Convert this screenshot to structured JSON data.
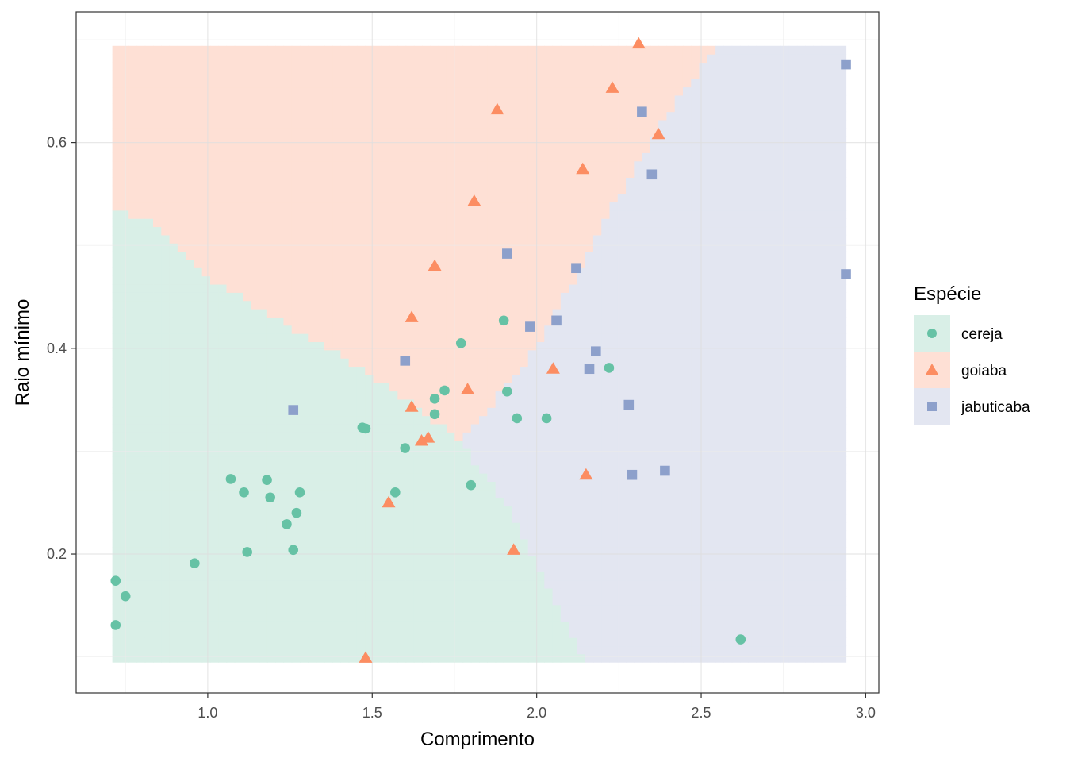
{
  "chart_data": {
    "type": "scatter",
    "xlabel": "Comprimento",
    "ylabel": "Raio mínimo",
    "xlim": [
      0.6,
      3.04
    ],
    "ylim": [
      0.065,
      0.727
    ],
    "x_ticks": [
      1.0,
      1.5,
      2.0,
      2.5,
      3.0
    ],
    "x_tick_labels": [
      "1.0",
      "1.5",
      "2.0",
      "2.5",
      "3.0"
    ],
    "y_ticks": [
      0.2,
      0.4,
      0.6
    ],
    "y_tick_labels": [
      "0.2",
      "0.4",
      "0.6"
    ],
    "grid": true,
    "legend": {
      "title": "Espécie",
      "placement": "right"
    },
    "colors": {
      "cereja": "#66c2a5",
      "goiaba": "#fc8d62",
      "jabuticaba": "#8da0cb",
      "region_cereja": "#d9efe7",
      "region_goiaba": "#fee0d5",
      "region_jabuticaba": "#e3e6f1"
    },
    "decision_regions": {
      "x_range": [
        0.71,
        2.94
      ],
      "y_range": [
        0.095,
        0.694
      ],
      "cereja_goiaba_boundary": [
        [
          0.71,
          0.535
        ],
        [
          0.85,
          0.52
        ],
        [
          1.0,
          0.47
        ],
        [
          1.2,
          0.43
        ],
        [
          1.4,
          0.395
        ],
        [
          1.6,
          0.35
        ],
        [
          1.77,
          0.31
        ]
      ],
      "cereja_jabuticaba_boundary": [
        [
          1.77,
          0.31
        ],
        [
          1.9,
          0.25
        ],
        [
          2.05,
          0.16
        ],
        [
          2.15,
          0.095
        ]
      ],
      "goiaba_jabuticaba_boundary": [
        [
          1.77,
          0.31
        ],
        [
          2.0,
          0.4
        ],
        [
          2.2,
          0.52
        ],
        [
          2.4,
          0.63
        ],
        [
          2.55,
          0.694
        ]
      ]
    },
    "series": [
      {
        "name": "cereja",
        "shape": "circle",
        "points": [
          [
            0.72,
            0.174
          ],
          [
            0.72,
            0.131
          ],
          [
            0.75,
            0.159
          ],
          [
            0.96,
            0.191
          ],
          [
            1.07,
            0.273
          ],
          [
            1.11,
            0.26
          ],
          [
            1.12,
            0.202
          ],
          [
            1.18,
            0.272
          ],
          [
            1.19,
            0.255
          ],
          [
            1.24,
            0.229
          ],
          [
            1.26,
            0.204
          ],
          [
            1.27,
            0.24
          ],
          [
            1.28,
            0.26
          ],
          [
            1.47,
            0.323
          ],
          [
            1.48,
            0.322
          ],
          [
            1.57,
            0.26
          ],
          [
            1.6,
            0.303
          ],
          [
            1.69,
            0.336
          ],
          [
            1.69,
            0.351
          ],
          [
            1.72,
            0.359
          ],
          [
            1.77,
            0.405
          ],
          [
            1.8,
            0.267
          ],
          [
            1.9,
            0.427
          ],
          [
            1.91,
            0.358
          ],
          [
            1.94,
            0.332
          ],
          [
            2.03,
            0.332
          ],
          [
            2.22,
            0.381
          ],
          [
            2.62,
            0.117
          ]
        ]
      },
      {
        "name": "goiaba",
        "shape": "triangle",
        "points": [
          [
            1.48,
            0.099
          ],
          [
            1.55,
            0.25
          ],
          [
            1.62,
            0.343
          ],
          [
            1.62,
            0.43
          ],
          [
            1.65,
            0.31
          ],
          [
            1.67,
            0.313
          ],
          [
            1.69,
            0.48
          ],
          [
            1.79,
            0.36
          ],
          [
            1.81,
            0.543
          ],
          [
            1.88,
            0.632
          ],
          [
            1.93,
            0.204
          ],
          [
            2.05,
            0.38
          ],
          [
            2.14,
            0.574
          ],
          [
            2.15,
            0.277
          ],
          [
            2.23,
            0.653
          ],
          [
            2.31,
            0.696
          ],
          [
            2.37,
            0.608
          ]
        ]
      },
      {
        "name": "jabuticaba",
        "shape": "square",
        "points": [
          [
            1.26,
            0.34
          ],
          [
            1.6,
            0.388
          ],
          [
            1.91,
            0.492
          ],
          [
            1.98,
            0.421
          ],
          [
            2.06,
            0.427
          ],
          [
            2.12,
            0.478
          ],
          [
            2.16,
            0.38
          ],
          [
            2.18,
            0.397
          ],
          [
            2.28,
            0.345
          ],
          [
            2.29,
            0.277
          ],
          [
            2.32,
            0.63
          ],
          [
            2.35,
            0.569
          ],
          [
            2.39,
            0.281
          ],
          [
            2.94,
            0.676
          ],
          [
            2.94,
            0.472
          ]
        ]
      }
    ]
  }
}
